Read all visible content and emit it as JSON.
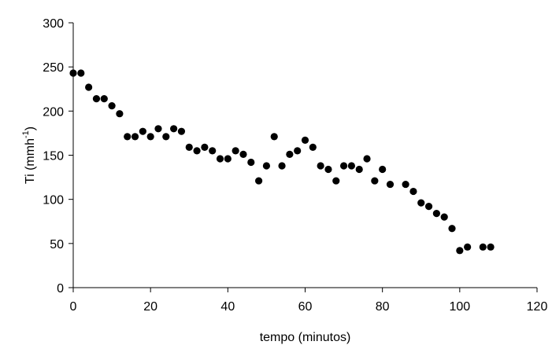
{
  "chart_data": {
    "type": "scatter",
    "title": "",
    "xlabel": "tempo (minutos)",
    "ylabel": {
      "base": "Ti (mmh",
      "sup": "-1",
      "close": ")"
    },
    "xlim": [
      0,
      120
    ],
    "ylim": [
      0,
      300
    ],
    "xticks": [
      "0",
      "20",
      "40",
      "60",
      "80",
      "100",
      "120"
    ],
    "yticks": [
      "0",
      "50",
      "100",
      "150",
      "200",
      "250",
      "300"
    ],
    "grid": false,
    "legend": "none",
    "marker_color": "#000000",
    "series": [
      {
        "x": [
          0,
          2,
          4,
          6,
          8,
          10,
          12,
          14,
          16,
          18,
          20,
          22,
          24,
          26,
          28,
          30,
          32,
          34,
          36,
          38,
          40,
          42,
          44,
          46,
          48,
          50,
          52,
          54,
          56,
          58,
          60,
          62,
          64,
          66,
          68,
          70,
          72,
          74,
          76,
          78,
          80,
          82,
          86,
          88,
          90,
          92,
          94,
          96,
          98,
          100,
          102,
          106,
          108
        ],
        "y": [
          243,
          243,
          227,
          214,
          214,
          206,
          197,
          171,
          171,
          177,
          171,
          180,
          171,
          180,
          177,
          159,
          155,
          159,
          155,
          146,
          146,
          155,
          151,
          142,
          121,
          138,
          171,
          138,
          151,
          155,
          167,
          159,
          138,
          134,
          121,
          138,
          138,
          134,
          146,
          121,
          134,
          117,
          117,
          109,
          96,
          92,
          84,
          80,
          67,
          42,
          46,
          46,
          46
        ]
      }
    ]
  }
}
